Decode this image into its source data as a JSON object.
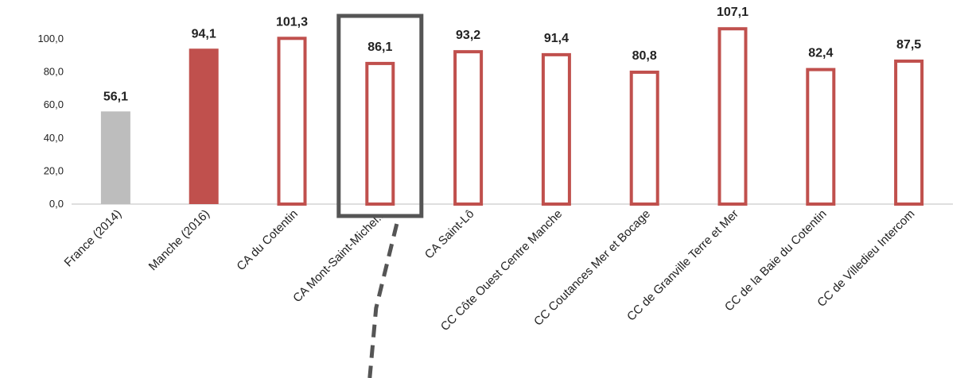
{
  "chart_data": {
    "type": "bar",
    "title": "",
    "xlabel": "",
    "ylabel": "",
    "ylim": [
      0,
      100
    ],
    "yticks": [
      "0,0",
      "20,0",
      "40,0",
      "60,0",
      "80,0",
      "100,0"
    ],
    "grid": false,
    "legend": "none",
    "categories": [
      "France (2014)",
      "Manche (2016)",
      "CA du Cotentin",
      "CA Mont-Saint-Michel...",
      "CA Saint-Lô",
      "CC Côte Ouest Centre Manche",
      "CC Coutances Mer et Bocage",
      "CC de Granville Terre et Mer",
      "CC de la Baie du Cotentin",
      "CC de Villedieu Intercom"
    ],
    "values": [
      56.1,
      94.1,
      101.3,
      86.1,
      93.2,
      91.4,
      80.8,
      107.1,
      82.4,
      87.5
    ],
    "value_labels": [
      "56,1",
      "94,1",
      "101,3",
      "86,1",
      "93,2",
      "91,4",
      "80,8",
      "107,1",
      "82,4",
      "87,5"
    ],
    "bar_styles": [
      "gray-fill",
      "red-fill",
      "outline",
      "outline",
      "outline",
      "outline",
      "outline",
      "outline",
      "outline",
      "outline"
    ],
    "highlighted_category": "CA Mont-Saint-Michel...",
    "colors": {
      "france": "#bdbdbd",
      "manche": "#c0504d",
      "outline": "#c0504d",
      "highlight_box": "#555555",
      "axis": "#bfbfbf"
    }
  }
}
